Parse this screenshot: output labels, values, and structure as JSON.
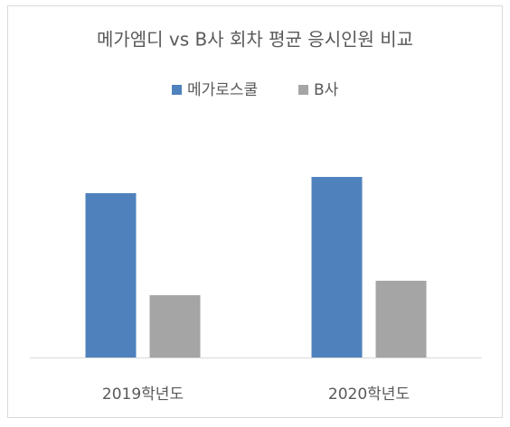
{
  "chart_data": {
    "type": "bar",
    "title": "메가엠디 vs B사 회차 평균 응시인원 비교",
    "categories": [
      "2019학년도",
      "2020학년도"
    ],
    "series": [
      {
        "name": "메가로스쿨",
        "color": "#4f81bd",
        "values": [
          182,
          200
        ]
      },
      {
        "name": "B사",
        "color": "#a5a5a5",
        "values": [
          69,
          85
        ]
      }
    ],
    "ylim": [
      0,
      250
    ],
    "legend": "top"
  }
}
